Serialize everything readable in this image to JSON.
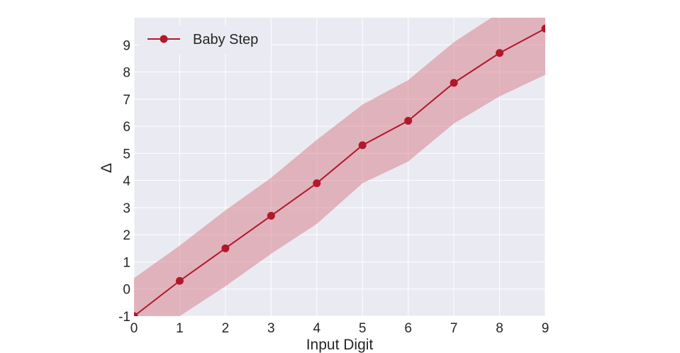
{
  "chart_data": {
    "type": "line",
    "xlabel": "Input Digit",
    "ylabel": "Δ",
    "x": [
      0,
      1,
      2,
      3,
      4,
      5,
      6,
      7,
      8,
      9
    ],
    "xlim": [
      0,
      9
    ],
    "ylim": [
      -1,
      10
    ],
    "x_ticks": [
      "0",
      "1",
      "2",
      "3",
      "4",
      "5",
      "6",
      "7",
      "8",
      "9"
    ],
    "y_ticks": [
      "-1",
      "0",
      "1",
      "2",
      "3",
      "4",
      "5",
      "6",
      "7",
      "8",
      "9"
    ],
    "grid": true,
    "legend_position": "top-left",
    "series": [
      {
        "name": "Baby Step",
        "color": "#b2182b",
        "band_color": "#d7838f",
        "values": [
          -1.0,
          0.3,
          1.5,
          2.7,
          3.9,
          5.3,
          6.2,
          7.6,
          8.7,
          9.6
        ],
        "upper": [
          0.4,
          1.6,
          2.9,
          4.1,
          5.5,
          6.8,
          7.7,
          9.1,
          10.2,
          11.2
        ],
        "lower": [
          -2.4,
          -1.0,
          0.1,
          1.3,
          2.4,
          3.9,
          4.7,
          6.1,
          7.1,
          7.9
        ]
      }
    ],
    "colors": {
      "plot_background": "#eaeaf2",
      "grid": "#ffffff"
    }
  }
}
